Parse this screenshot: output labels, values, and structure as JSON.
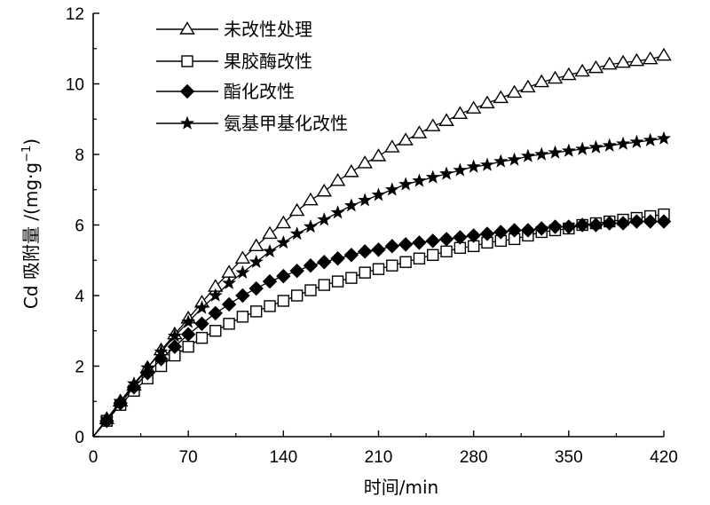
{
  "chart_data": {
    "type": "line",
    "xlabel": "时间/min",
    "ylabel_prefix": "Cd 吸附量 /(mg·g",
    "ylabel_sup": "−1",
    "ylabel_suffix": ")",
    "xlim": [
      0,
      420
    ],
    "ylim": [
      0,
      12
    ],
    "x_ticks": [
      0,
      70,
      140,
      210,
      280,
      350,
      420
    ],
    "y_ticks": [
      0,
      2,
      4,
      6,
      8,
      10,
      12
    ],
    "grid": false,
    "legend_position": "top-left",
    "x": [
      0,
      10,
      20,
      30,
      40,
      50,
      60,
      70,
      80,
      90,
      100,
      110,
      120,
      130,
      140,
      150,
      160,
      170,
      180,
      190,
      200,
      210,
      220,
      230,
      240,
      250,
      260,
      270,
      280,
      290,
      300,
      310,
      320,
      330,
      340,
      350,
      360,
      370,
      380,
      390,
      400,
      410,
      420
    ],
    "series": [
      {
        "name": "未改性处理",
        "marker": "open-triangle",
        "values": [
          0,
          0.5,
          1.0,
          1.45,
          1.95,
          2.45,
          2.9,
          3.35,
          3.8,
          4.25,
          4.65,
          5.05,
          5.4,
          5.75,
          6.05,
          6.4,
          6.7,
          6.95,
          7.25,
          7.5,
          7.75,
          7.95,
          8.2,
          8.4,
          8.6,
          8.8,
          8.95,
          9.15,
          9.3,
          9.45,
          9.6,
          9.75,
          9.9,
          10.05,
          10.15,
          10.25,
          10.35,
          10.45,
          10.55,
          10.6,
          10.65,
          10.7,
          10.8
        ]
      },
      {
        "name": "果胶酶改性",
        "marker": "open-square",
        "values": [
          0,
          0.45,
          0.9,
          1.3,
          1.65,
          2.0,
          2.3,
          2.55,
          2.8,
          3.0,
          3.2,
          3.4,
          3.55,
          3.7,
          3.85,
          4.0,
          4.15,
          4.3,
          4.4,
          4.5,
          4.65,
          4.75,
          4.85,
          4.95,
          5.05,
          5.15,
          5.25,
          5.35,
          5.4,
          5.5,
          5.55,
          5.6,
          5.7,
          5.8,
          5.85,
          5.9,
          6.0,
          6.05,
          6.1,
          6.15,
          6.2,
          6.25,
          6.3
        ]
      },
      {
        "name": "酯化改性",
        "marker": "filled-diamond",
        "values": [
          0,
          0.45,
          0.95,
          1.4,
          1.8,
          2.2,
          2.55,
          2.9,
          3.2,
          3.5,
          3.75,
          4.0,
          4.2,
          4.4,
          4.55,
          4.7,
          4.85,
          4.95,
          5.05,
          5.15,
          5.25,
          5.3,
          5.4,
          5.45,
          5.5,
          5.55,
          5.6,
          5.65,
          5.7,
          5.75,
          5.8,
          5.85,
          5.85,
          5.9,
          5.95,
          5.95,
          6.0,
          6.0,
          6.05,
          6.05,
          6.1,
          6.1,
          6.1
        ]
      },
      {
        "name": "氨基甲基化改性",
        "marker": "filled-star",
        "values": [
          0,
          0.5,
          1.0,
          1.5,
          1.95,
          2.4,
          2.85,
          3.25,
          3.65,
          4.0,
          4.35,
          4.65,
          4.95,
          5.25,
          5.5,
          5.75,
          5.95,
          6.15,
          6.35,
          6.55,
          6.7,
          6.85,
          7.0,
          7.15,
          7.25,
          7.35,
          7.45,
          7.55,
          7.65,
          7.7,
          7.8,
          7.85,
          7.95,
          8.0,
          8.05,
          8.1,
          8.15,
          8.2,
          8.25,
          8.3,
          8.35,
          8.4,
          8.45
        ]
      }
    ]
  }
}
